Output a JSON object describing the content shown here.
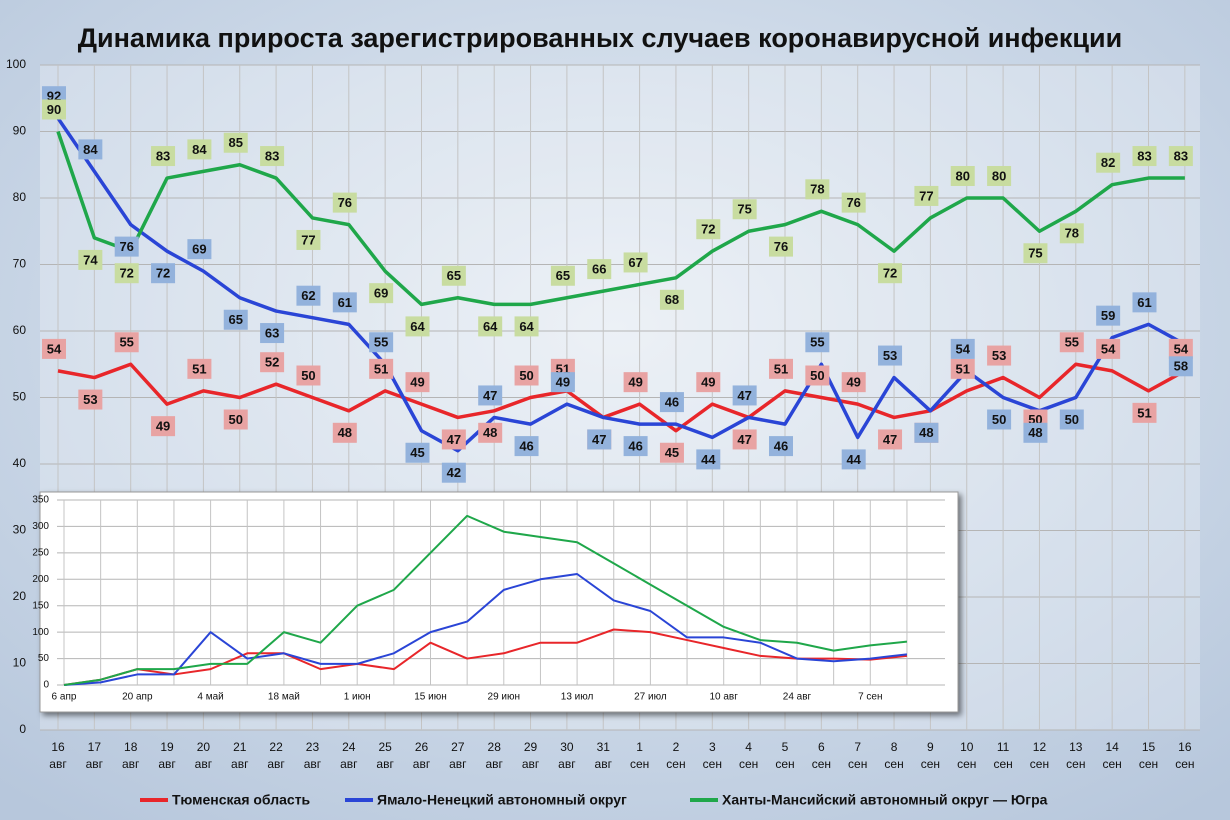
{
  "chart_data": [
    {
      "type": "line",
      "title": "Динамика прироста зарегистрированных случаев коронавирусной инфекции",
      "categories": [
        "16 авг",
        "17 авг",
        "18 авг",
        "19 авг",
        "20 авг",
        "21 авг",
        "22 авг",
        "23 авг",
        "24 авг",
        "25 авг",
        "26 авг",
        "27 авг",
        "28 авг",
        "29 авг",
        "30 авг",
        "31 авг",
        "1 сен",
        "2 сен",
        "3 сен",
        "4 сен",
        "5 сен",
        "6 сен",
        "7 сен",
        "8 сен",
        "9 сен",
        "10 сен",
        "11 сен",
        "12 сен",
        "13 сен",
        "14 сен",
        "15 сен",
        "16 сен"
      ],
      "series": [
        {
          "name": "Тюменская область",
          "color": "#e8262a",
          "label_color": "#e8a3a3",
          "values": [
            54,
            53,
            55,
            49,
            51,
            50,
            52,
            50,
            48,
            51,
            49,
            47,
            48,
            50,
            51,
            47,
            49,
            45,
            49,
            47,
            51,
            50,
            49,
            47,
            48,
            51,
            53,
            50,
            55,
            54,
            51,
            54
          ]
        },
        {
          "name": "Ямало-Ненецкий автономный округ",
          "color": "#2a45d6",
          "label_color": "#93b2dc",
          "values": [
            92,
            84,
            76,
            72,
            69,
            65,
            63,
            62,
            61,
            55,
            45,
            42,
            47,
            46,
            49,
            47,
            46,
            46,
            44,
            47,
            46,
            55,
            44,
            53,
            48,
            54,
            50,
            48,
            50,
            59,
            61,
            58
          ]
        },
        {
          "name": "Ханты-Мансийский автономный округ — Югра",
          "color": "#1fa74a",
          "label_color": "#c8dca0",
          "values": [
            90,
            74,
            72,
            83,
            84,
            85,
            83,
            77,
            76,
            69,
            64,
            65,
            64,
            64,
            65,
            66,
            67,
            68,
            72,
            75,
            76,
            78,
            76,
            72,
            77,
            80,
            80,
            75,
            78,
            82,
            83,
            83
          ]
        }
      ],
      "ylim": [
        0,
        100
      ],
      "yticks": [
        0,
        10,
        20,
        30,
        40,
        50,
        60,
        70,
        80,
        90,
        100
      ],
      "grid": true,
      "legend": "bottom",
      "value_labels": true
    },
    {
      "type": "line",
      "categories": [
        "6 апр",
        null,
        "20 апр",
        null,
        "4 май",
        null,
        "18 май",
        null,
        "1 июн",
        null,
        "15 июн",
        null,
        "29 июн",
        null,
        "13 июл",
        null,
        "27 июл",
        null,
        "10 авг",
        null,
        "24 авг",
        null,
        "7 сен",
        null
      ],
      "series": [
        {
          "name": "Тюменская область",
          "color": "#e8262a",
          "values": [
            0,
            10,
            30,
            20,
            30,
            60,
            60,
            30,
            40,
            30,
            80,
            50,
            60,
            80,
            80,
            105,
            100,
            85,
            70,
            55,
            50,
            50,
            48,
            55
          ]
        },
        {
          "name": "Ямало-Ненецкий автономный округ",
          "color": "#2a45d6",
          "values": [
            0,
            5,
            20,
            20,
            100,
            50,
            60,
            40,
            40,
            60,
            100,
            120,
            180,
            200,
            210,
            160,
            140,
            90,
            90,
            80,
            50,
            45,
            50,
            58
          ]
        },
        {
          "name": "Ханты-Мансийский автономный округ — Югра",
          "color": "#1fa74a",
          "values": [
            0,
            10,
            30,
            30,
            40,
            40,
            100,
            80,
            150,
            180,
            250,
            320,
            290,
            280,
            270,
            230,
            190,
            150,
            110,
            85,
            80,
            65,
            75,
            82
          ]
        }
      ],
      "ylim": [
        0,
        350
      ],
      "yticks": [
        0,
        50,
        100,
        150,
        200,
        250,
        300,
        350
      ],
      "grid": true
    }
  ]
}
